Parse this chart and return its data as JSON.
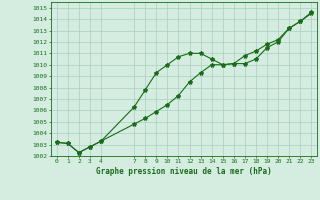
{
  "line1_x": [
    0,
    1,
    2,
    3,
    4,
    7,
    8,
    9,
    10,
    11,
    12,
    13,
    14,
    15,
    16,
    17,
    18,
    19,
    20,
    21,
    22,
    23
  ],
  "line1_y": [
    1003.2,
    1003.1,
    1002.3,
    1002.8,
    1003.3,
    1006.3,
    1007.8,
    1009.3,
    1010.0,
    1010.7,
    1011.0,
    1011.0,
    1010.5,
    1010.0,
    1010.1,
    1010.1,
    1010.5,
    1011.5,
    1012.0,
    1013.2,
    1013.8,
    1014.5
  ],
  "line2_x": [
    0,
    1,
    2,
    3,
    4,
    7,
    8,
    9,
    10,
    11,
    12,
    13,
    14,
    15,
    16,
    17,
    18,
    19,
    20,
    21,
    22,
    23
  ],
  "line2_y": [
    1003.2,
    1003.1,
    1002.3,
    1002.8,
    1003.3,
    1004.8,
    1005.3,
    1005.9,
    1006.5,
    1007.3,
    1008.5,
    1009.3,
    1010.0,
    1010.0,
    1010.1,
    1010.8,
    1011.2,
    1011.8,
    1012.2,
    1013.2,
    1013.8,
    1014.6
  ],
  "line_color": "#1a6b1a",
  "bg_color": "#d4ede0",
  "grid_color": "#aacfbe",
  "xlabel": "Graphe pression niveau de la mer (hPa)",
  "ylim": [
    1002,
    1015.5
  ],
  "xlim": [
    -0.5,
    23.5
  ],
  "yticks": [
    1002,
    1003,
    1004,
    1005,
    1006,
    1007,
    1008,
    1009,
    1010,
    1011,
    1012,
    1013,
    1014,
    1015
  ],
  "xticks": [
    0,
    1,
    2,
    3,
    4,
    7,
    8,
    9,
    10,
    11,
    12,
    13,
    14,
    15,
    16,
    17,
    18,
    19,
    20,
    21,
    22,
    23
  ],
  "marker": "*",
  "markersize": 3,
  "linewidth": 0.8,
  "tick_fontsize": 4.5,
  "xlabel_fontsize": 5.5
}
